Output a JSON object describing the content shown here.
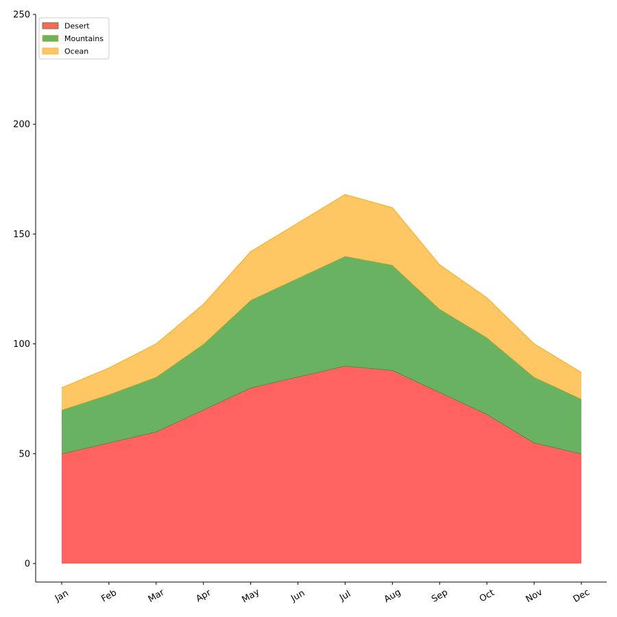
{
  "chart_data": {
    "type": "area",
    "stacked": true,
    "title": "",
    "xlabel": "",
    "ylabel": "",
    "categories": [
      "Jan",
      "Feb",
      "Mar",
      "Apr",
      "May",
      "Jun",
      "Jul",
      "Aug",
      "Sep",
      "Oct",
      "Nov",
      "Dec"
    ],
    "ylim": [
      0,
      250
    ],
    "yticks": [
      0,
      50,
      100,
      150,
      200,
      250
    ],
    "grid": false,
    "legend_position": "top-left",
    "series": [
      {
        "name": "Desert",
        "color": "#ff6361",
        "edge_color": "#2e8b1e",
        "values": [
          50,
          55,
          60,
          70,
          80,
          85,
          90,
          88,
          78,
          68,
          55,
          50
        ]
      },
      {
        "name": "Mountains",
        "color": "#68b262",
        "edge_color": "#f5a623",
        "values": [
          20,
          22,
          25,
          30,
          40,
          45,
          50,
          48,
          38,
          35,
          30,
          25
        ]
      },
      {
        "name": "Ocean",
        "color": "#ffc764",
        "edge_color": "#f5b335",
        "values": [
          10,
          12,
          15,
          18,
          22,
          25,
          28,
          26,
          20,
          18,
          15,
          12
        ]
      }
    ]
  }
}
